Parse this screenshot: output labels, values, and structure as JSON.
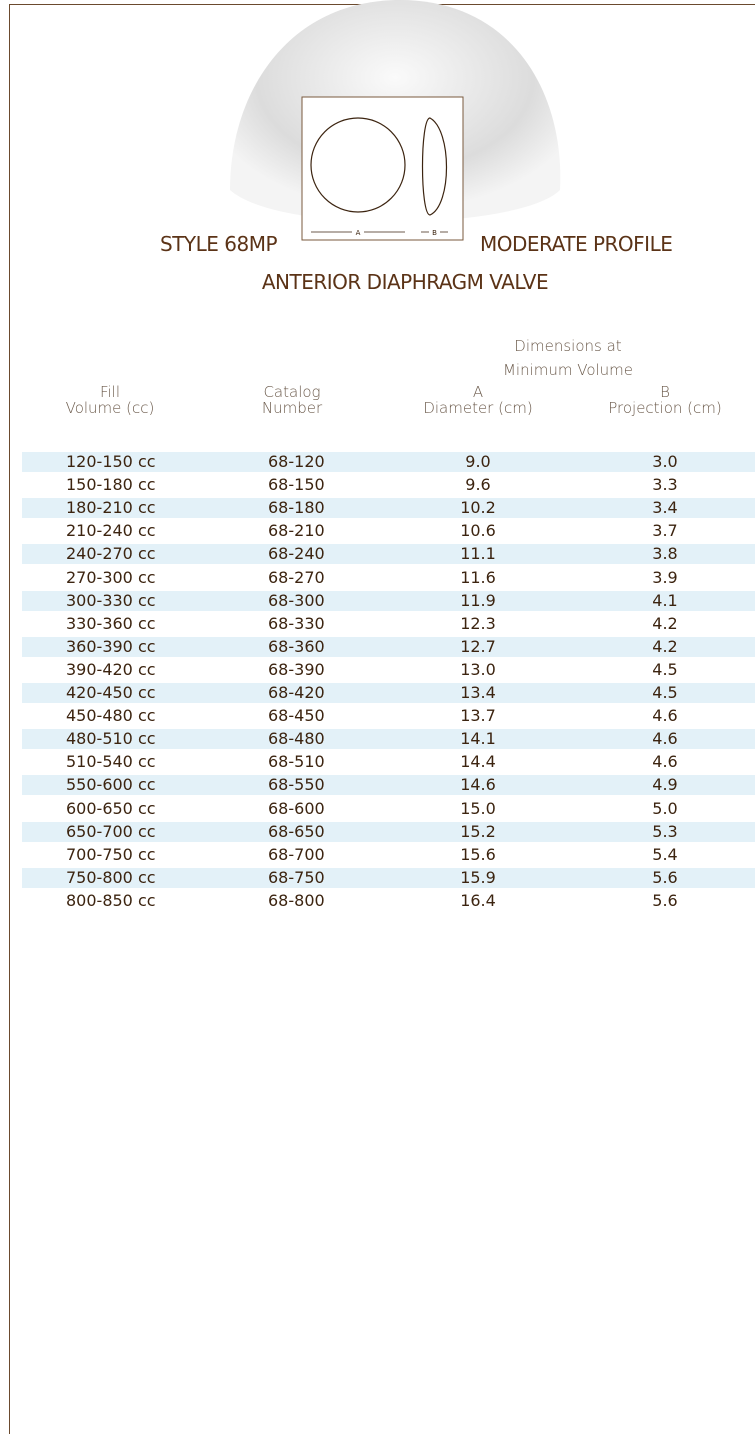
{
  "diagram": {
    "label_a": "A",
    "label_b": "B"
  },
  "header": {
    "title_left": "STYLE 68MP",
    "title_right": "MODERATE PROFILE",
    "subtitle": "ANTERIOR DIAPHRAGM VALVE"
  },
  "table": {
    "group_header": [
      "Dimensions at",
      "Minimum Volume"
    ],
    "columns": [
      {
        "line1": "Fill",
        "line2": "Volume (cc)"
      },
      {
        "line1": "Catalog",
        "line2": "Number"
      },
      {
        "line1": "A",
        "line2": "Diameter (cm)"
      },
      {
        "line1": "B",
        "line2": "Projection (cm)"
      }
    ],
    "rows": [
      [
        "120-150 cc",
        "68-120",
        "9.0",
        "3.0"
      ],
      [
        "150-180 cc",
        "68-150",
        "9.6",
        "3.3"
      ],
      [
        "180-210 cc",
        "68-180",
        "10.2",
        "3.4"
      ],
      [
        "210-240 cc",
        "68-210",
        "10.6",
        "3.7"
      ],
      [
        "240-270 cc",
        "68-240",
        "11.1",
        "3.8"
      ],
      [
        "270-300 cc",
        "68-270",
        "11.6",
        "3.9"
      ],
      [
        "300-330 cc",
        "68-300",
        "11.9",
        "4.1"
      ],
      [
        "330-360 cc",
        "68-330",
        "12.3",
        "4.2"
      ],
      [
        "360-390 cc",
        "68-360",
        "12.7",
        "4.2"
      ],
      [
        "390-420 cc",
        "68-390",
        "13.0",
        "4.5"
      ],
      [
        "420-450 cc",
        "68-420",
        "13.4",
        "4.5"
      ],
      [
        "450-480 cc",
        "68-450",
        "13.7",
        "4.6"
      ],
      [
        "480-510 cc",
        "68-480",
        "14.1",
        "4.6"
      ],
      [
        "510-540 cc",
        "68-510",
        "14.4",
        "4.6"
      ],
      [
        "550-600 cc",
        "68-550",
        "14.6",
        "4.9"
      ],
      [
        "600-650 cc",
        "68-600",
        "15.0",
        "5.0"
      ],
      [
        "650-700 cc",
        "68-650",
        "15.2",
        "5.3"
      ],
      [
        "700-750 cc",
        "68-700",
        "15.6",
        "5.4"
      ],
      [
        "750-800 cc",
        "68-750",
        "15.9",
        "5.6"
      ],
      [
        "800-850 cc",
        "68-800",
        "16.4",
        "5.6"
      ]
    ]
  }
}
